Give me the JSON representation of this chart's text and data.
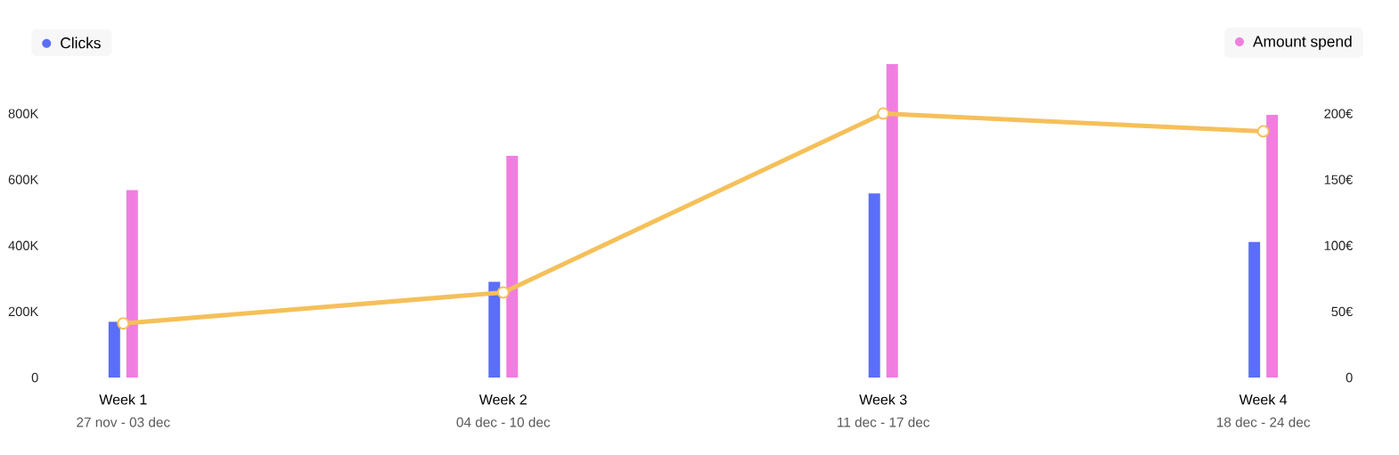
{
  "chart_data": {
    "type": "bar",
    "categories": [
      "Week 1",
      "Week 2",
      "Week 3",
      "Week 4"
    ],
    "series": [
      {
        "name": "Clicks",
        "color": "#5b6ef9",
        "values": [
          169000,
          290000,
          558000,
          411000
        ]
      },
      {
        "name": "Amount spend",
        "color": "#f07ee0",
        "axis": "y2",
        "values": [
          142,
          168,
          237.5,
          199
        ]
      },
      {
        "type": "line",
        "color": "#f5c05a",
        "values": [
          164000,
          258000,
          800000,
          746000
        ]
      }
    ],
    "annotations": [
      "27 nov - 03 dec",
      "04 dec - 10 dec",
      "11 dec - 17 dec",
      "18 dec - 24 dec"
    ],
    "ylim": [
      0,
      950000
    ],
    "yticks": [
      0,
      {
        "value": 200000,
        "label": "200K"
      },
      {
        "value": 400000,
        "label": "400K"
      },
      {
        "value": 600000,
        "label": "600K"
      },
      {
        "value": 800000,
        "label": "800K"
      }
    ],
    "y2lim": [
      0,
      237.5
    ],
    "y2ticks": [
      0,
      {
        "value": 50,
        "label": "50€"
      },
      {
        "value": 100,
        "label": "100€"
      },
      {
        "value": 150,
        "label": "150€"
      },
      {
        "value": 200,
        "label": "200€"
      }
    ],
    "marker": "circle",
    "legend": "top",
    "grid": false
  }
}
